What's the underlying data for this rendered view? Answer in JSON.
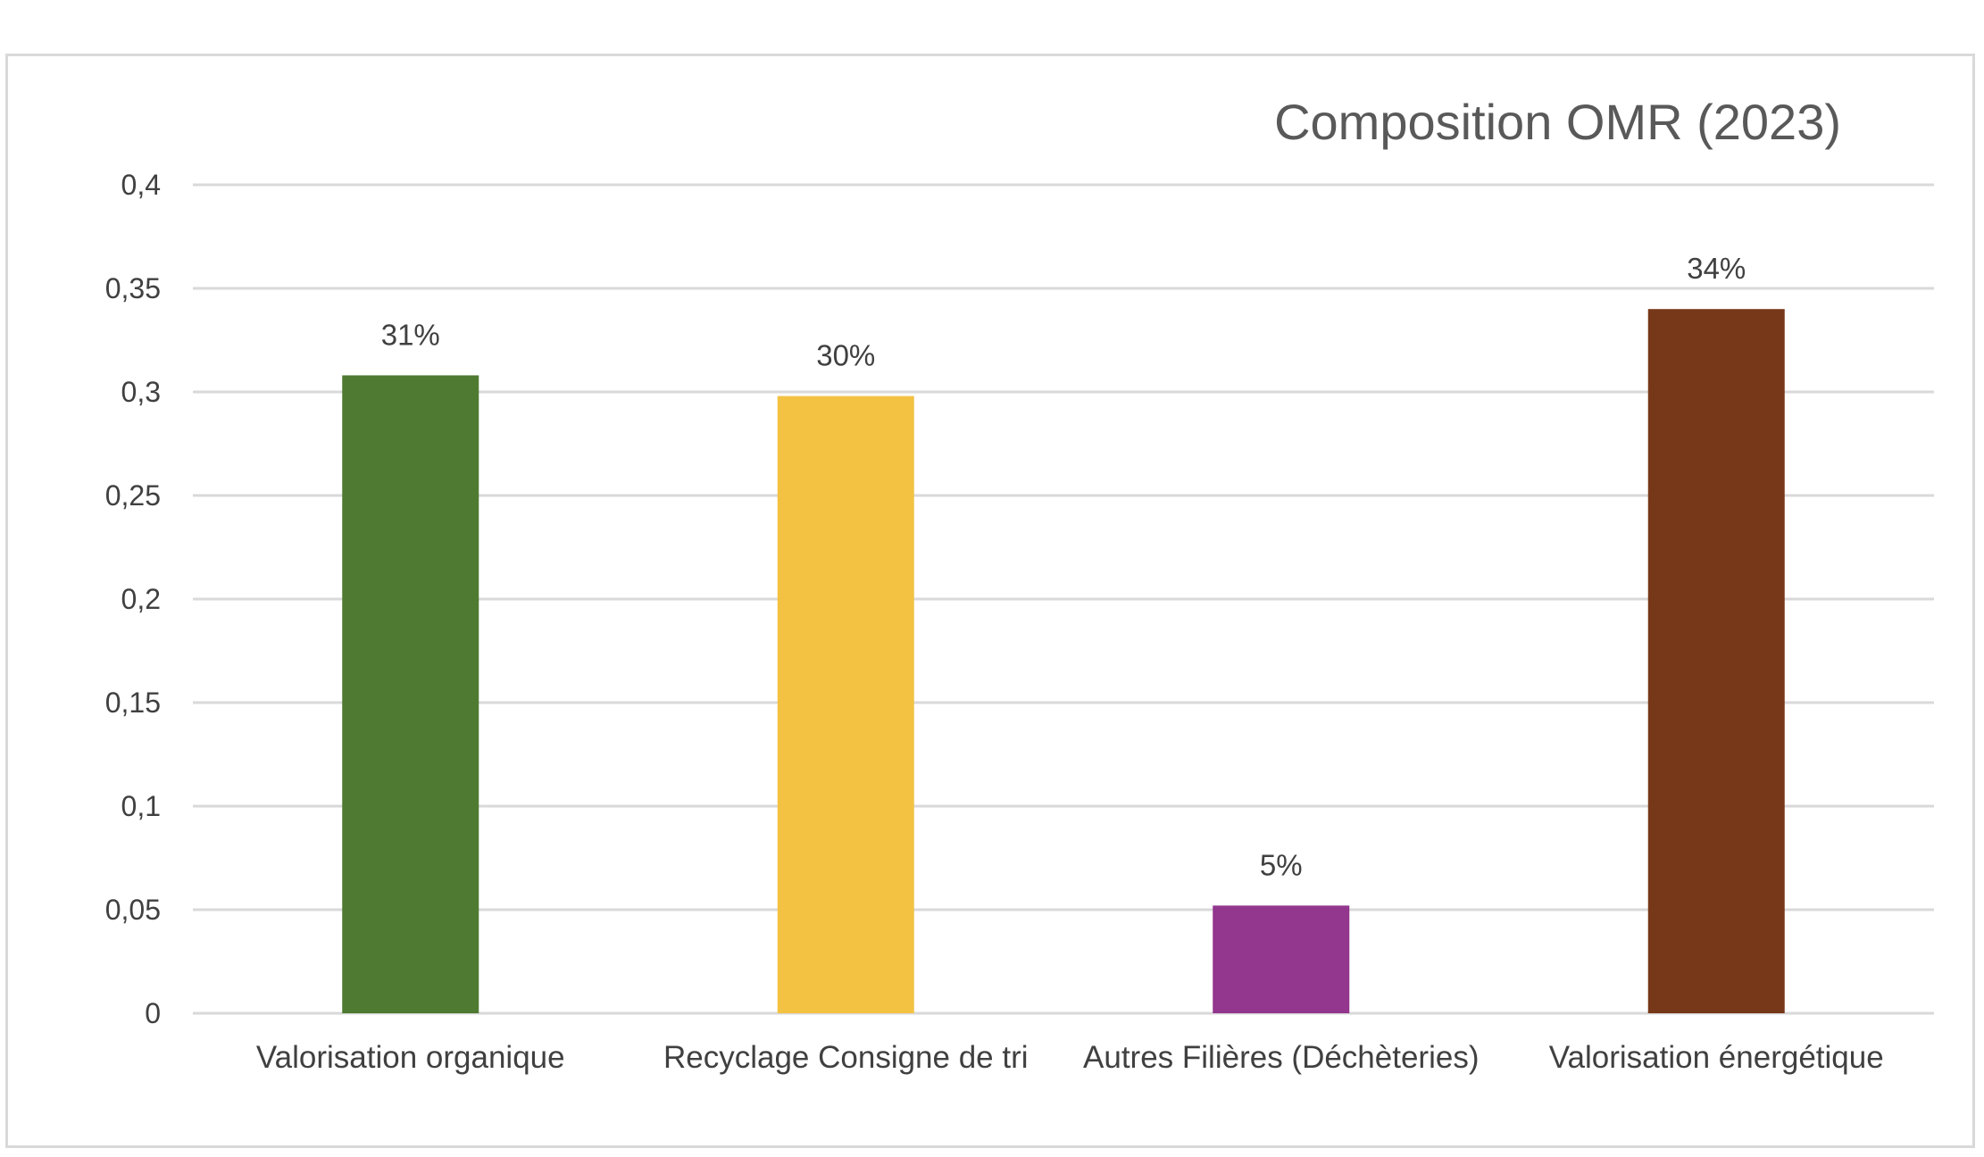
{
  "chart_data": {
    "type": "bar",
    "title": "Composition OMR (2023)",
    "xlabel": "",
    "ylabel": "",
    "categories": [
      "Valorisation organique",
      "Recyclage Consigne de tri",
      "Autres Filières (Déchèteries)",
      "Valorisation énergétique"
    ],
    "values": [
      0.308,
      0.298,
      0.052,
      0.34
    ],
    "data_labels": [
      "31%",
      "30%",
      "5%",
      "34%"
    ],
    "colors": [
      "#4e7a31",
      "#f3c243",
      "#92368e",
      "#77381a"
    ],
    "ylim": [
      0,
      0.4
    ],
    "yticks": [
      0,
      0.05,
      0.1,
      0.15,
      0.2,
      0.25,
      0.3,
      0.35,
      0.4
    ],
    "ytick_labels": [
      "0",
      "0,05",
      "0,1",
      "0,15",
      "0,2",
      "0,25",
      "0,3",
      "0,35",
      "0,4"
    ],
    "grid": true,
    "legend": "none"
  },
  "colors": {
    "gridline": "#d9d9d9",
    "text": "#404040",
    "title": "#595959",
    "frame": "#d9d9d9"
  }
}
